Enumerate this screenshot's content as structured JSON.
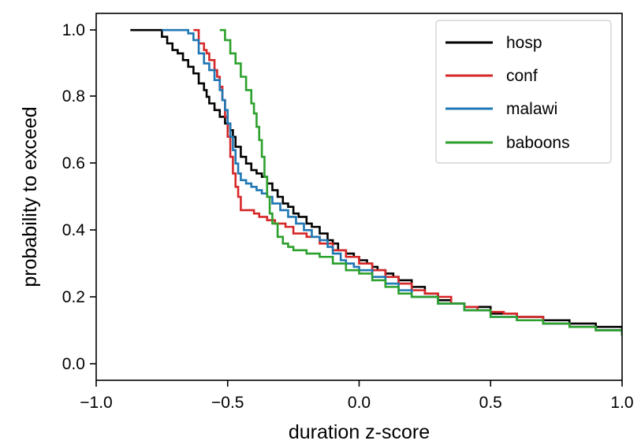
{
  "chart_data": {
    "type": "line",
    "title": "",
    "xlabel": "duration z-score",
    "ylabel": "probability to exceed",
    "xlim": [
      -1.0,
      1.0
    ],
    "ylim": [
      -0.05,
      1.05
    ],
    "xticks": [
      -1.0,
      -0.5,
      0.0,
      0.5,
      1.0
    ],
    "xtick_labels": [
      "−1.0",
      "−0.5",
      "0.0",
      "0.5",
      "1.0"
    ],
    "yticks": [
      0.0,
      0.2,
      0.4,
      0.6,
      0.8,
      1.0
    ],
    "ytick_labels": [
      "0.0",
      "0.2",
      "0.4",
      "0.6",
      "0.8",
      "1.0"
    ],
    "grid": false,
    "legend_position": "top-right",
    "series": [
      {
        "name": "hosp",
        "color": "#000000",
        "step": true,
        "x": [
          -0.87,
          -0.75,
          -0.73,
          -0.71,
          -0.69,
          -0.67,
          -0.65,
          -0.63,
          -0.61,
          -0.59,
          -0.58,
          -0.57,
          -0.55,
          -0.53,
          -0.51,
          -0.49,
          -0.48,
          -0.47,
          -0.45,
          -0.43,
          -0.41,
          -0.39,
          -0.37,
          -0.35,
          -0.33,
          -0.31,
          -0.29,
          -0.27,
          -0.25,
          -0.23,
          -0.2,
          -0.18,
          -0.15,
          -0.12,
          -0.1,
          -0.08,
          -0.05,
          -0.02,
          0.0,
          0.03,
          0.05,
          0.07,
          0.1,
          0.13,
          0.15,
          0.2,
          0.25,
          0.3,
          0.35,
          0.4,
          0.5,
          0.6,
          0.7,
          0.8,
          0.9,
          1.0
        ],
        "y": [
          1.0,
          0.98,
          0.96,
          0.94,
          0.93,
          0.91,
          0.89,
          0.87,
          0.84,
          0.82,
          0.8,
          0.78,
          0.76,
          0.74,
          0.72,
          0.7,
          0.68,
          0.65,
          0.62,
          0.6,
          0.58,
          0.57,
          0.56,
          0.54,
          0.52,
          0.5,
          0.48,
          0.47,
          0.45,
          0.44,
          0.42,
          0.41,
          0.39,
          0.37,
          0.36,
          0.34,
          0.33,
          0.32,
          0.31,
          0.3,
          0.29,
          0.28,
          0.27,
          0.26,
          0.25,
          0.23,
          0.21,
          0.19,
          0.18,
          0.17,
          0.15,
          0.14,
          0.13,
          0.12,
          0.11,
          0.1
        ]
      },
      {
        "name": "conf",
        "color": "#d62728",
        "step": true,
        "x": [
          -0.63,
          -0.61,
          -0.59,
          -0.58,
          -0.57,
          -0.55,
          -0.54,
          -0.53,
          -0.52,
          -0.51,
          -0.5,
          -0.49,
          -0.48,
          -0.47,
          -0.46,
          -0.45,
          -0.42,
          -0.4,
          -0.38,
          -0.35,
          -0.32,
          -0.28,
          -0.25,
          -0.2,
          -0.15,
          -0.1,
          -0.05,
          0.0,
          0.05,
          0.1,
          0.15,
          0.2,
          0.25,
          0.3,
          0.35,
          0.4,
          0.45,
          0.5,
          0.55,
          0.6,
          0.7,
          0.8,
          0.9,
          1.0
        ],
        "y": [
          1.0,
          0.96,
          0.94,
          0.93,
          0.91,
          0.88,
          0.86,
          0.83,
          0.79,
          0.74,
          0.68,
          0.62,
          0.57,
          0.53,
          0.5,
          0.46,
          0.46,
          0.45,
          0.44,
          0.43,
          0.42,
          0.41,
          0.39,
          0.38,
          0.36,
          0.34,
          0.32,
          0.3,
          0.28,
          0.26,
          0.24,
          0.22,
          0.21,
          0.2,
          0.18,
          0.17,
          0.16,
          0.155,
          0.15,
          0.14,
          0.12,
          0.11,
          0.1,
          0.09
        ]
      },
      {
        "name": "malawi",
        "color": "#1f77b4",
        "step": true,
        "x": [
          -0.75,
          -0.65,
          -0.63,
          -0.61,
          -0.59,
          -0.57,
          -0.55,
          -0.53,
          -0.52,
          -0.51,
          -0.5,
          -0.49,
          -0.48,
          -0.47,
          -0.46,
          -0.45,
          -0.43,
          -0.41,
          -0.39,
          -0.37,
          -0.35,
          -0.33,
          -0.3,
          -0.27,
          -0.24,
          -0.21,
          -0.18,
          -0.15,
          -0.12,
          -0.1,
          -0.07,
          -0.05,
          -0.02,
          0.0,
          0.05,
          0.1,
          0.15,
          0.2,
          0.3,
          0.4,
          0.5,
          0.6,
          0.7,
          0.8,
          0.9,
          1.0
        ],
        "y": [
          1.0,
          0.99,
          0.97,
          0.93,
          0.9,
          0.88,
          0.85,
          0.82,
          0.79,
          0.76,
          0.72,
          0.68,
          0.64,
          0.6,
          0.57,
          0.55,
          0.54,
          0.53,
          0.52,
          0.51,
          0.5,
          0.48,
          0.46,
          0.44,
          0.42,
          0.4,
          0.38,
          0.37,
          0.35,
          0.33,
          0.31,
          0.3,
          0.29,
          0.28,
          0.26,
          0.24,
          0.22,
          0.2,
          0.18,
          0.16,
          0.14,
          0.13,
          0.12,
          0.11,
          0.1,
          0.09
        ]
      },
      {
        "name": "baboons",
        "color": "#2ca02c",
        "step": true,
        "x": [
          -0.53,
          -0.51,
          -0.49,
          -0.47,
          -0.45,
          -0.43,
          -0.41,
          -0.4,
          -0.39,
          -0.38,
          -0.37,
          -0.36,
          -0.35,
          -0.34,
          -0.33,
          -0.31,
          -0.29,
          -0.27,
          -0.25,
          -0.22,
          -0.2,
          -0.15,
          -0.1,
          -0.05,
          0.0,
          0.05,
          0.1,
          0.15,
          0.2,
          0.3,
          0.4,
          0.5,
          0.6,
          0.7,
          0.8,
          0.9,
          1.0
        ],
        "y": [
          1.0,
          0.97,
          0.93,
          0.9,
          0.86,
          0.82,
          0.78,
          0.75,
          0.71,
          0.67,
          0.62,
          0.56,
          0.5,
          0.45,
          0.42,
          0.38,
          0.36,
          0.35,
          0.34,
          0.34,
          0.33,
          0.32,
          0.3,
          0.28,
          0.27,
          0.25,
          0.23,
          0.21,
          0.2,
          0.18,
          0.16,
          0.14,
          0.13,
          0.12,
          0.11,
          0.1,
          0.085
        ]
      }
    ]
  }
}
